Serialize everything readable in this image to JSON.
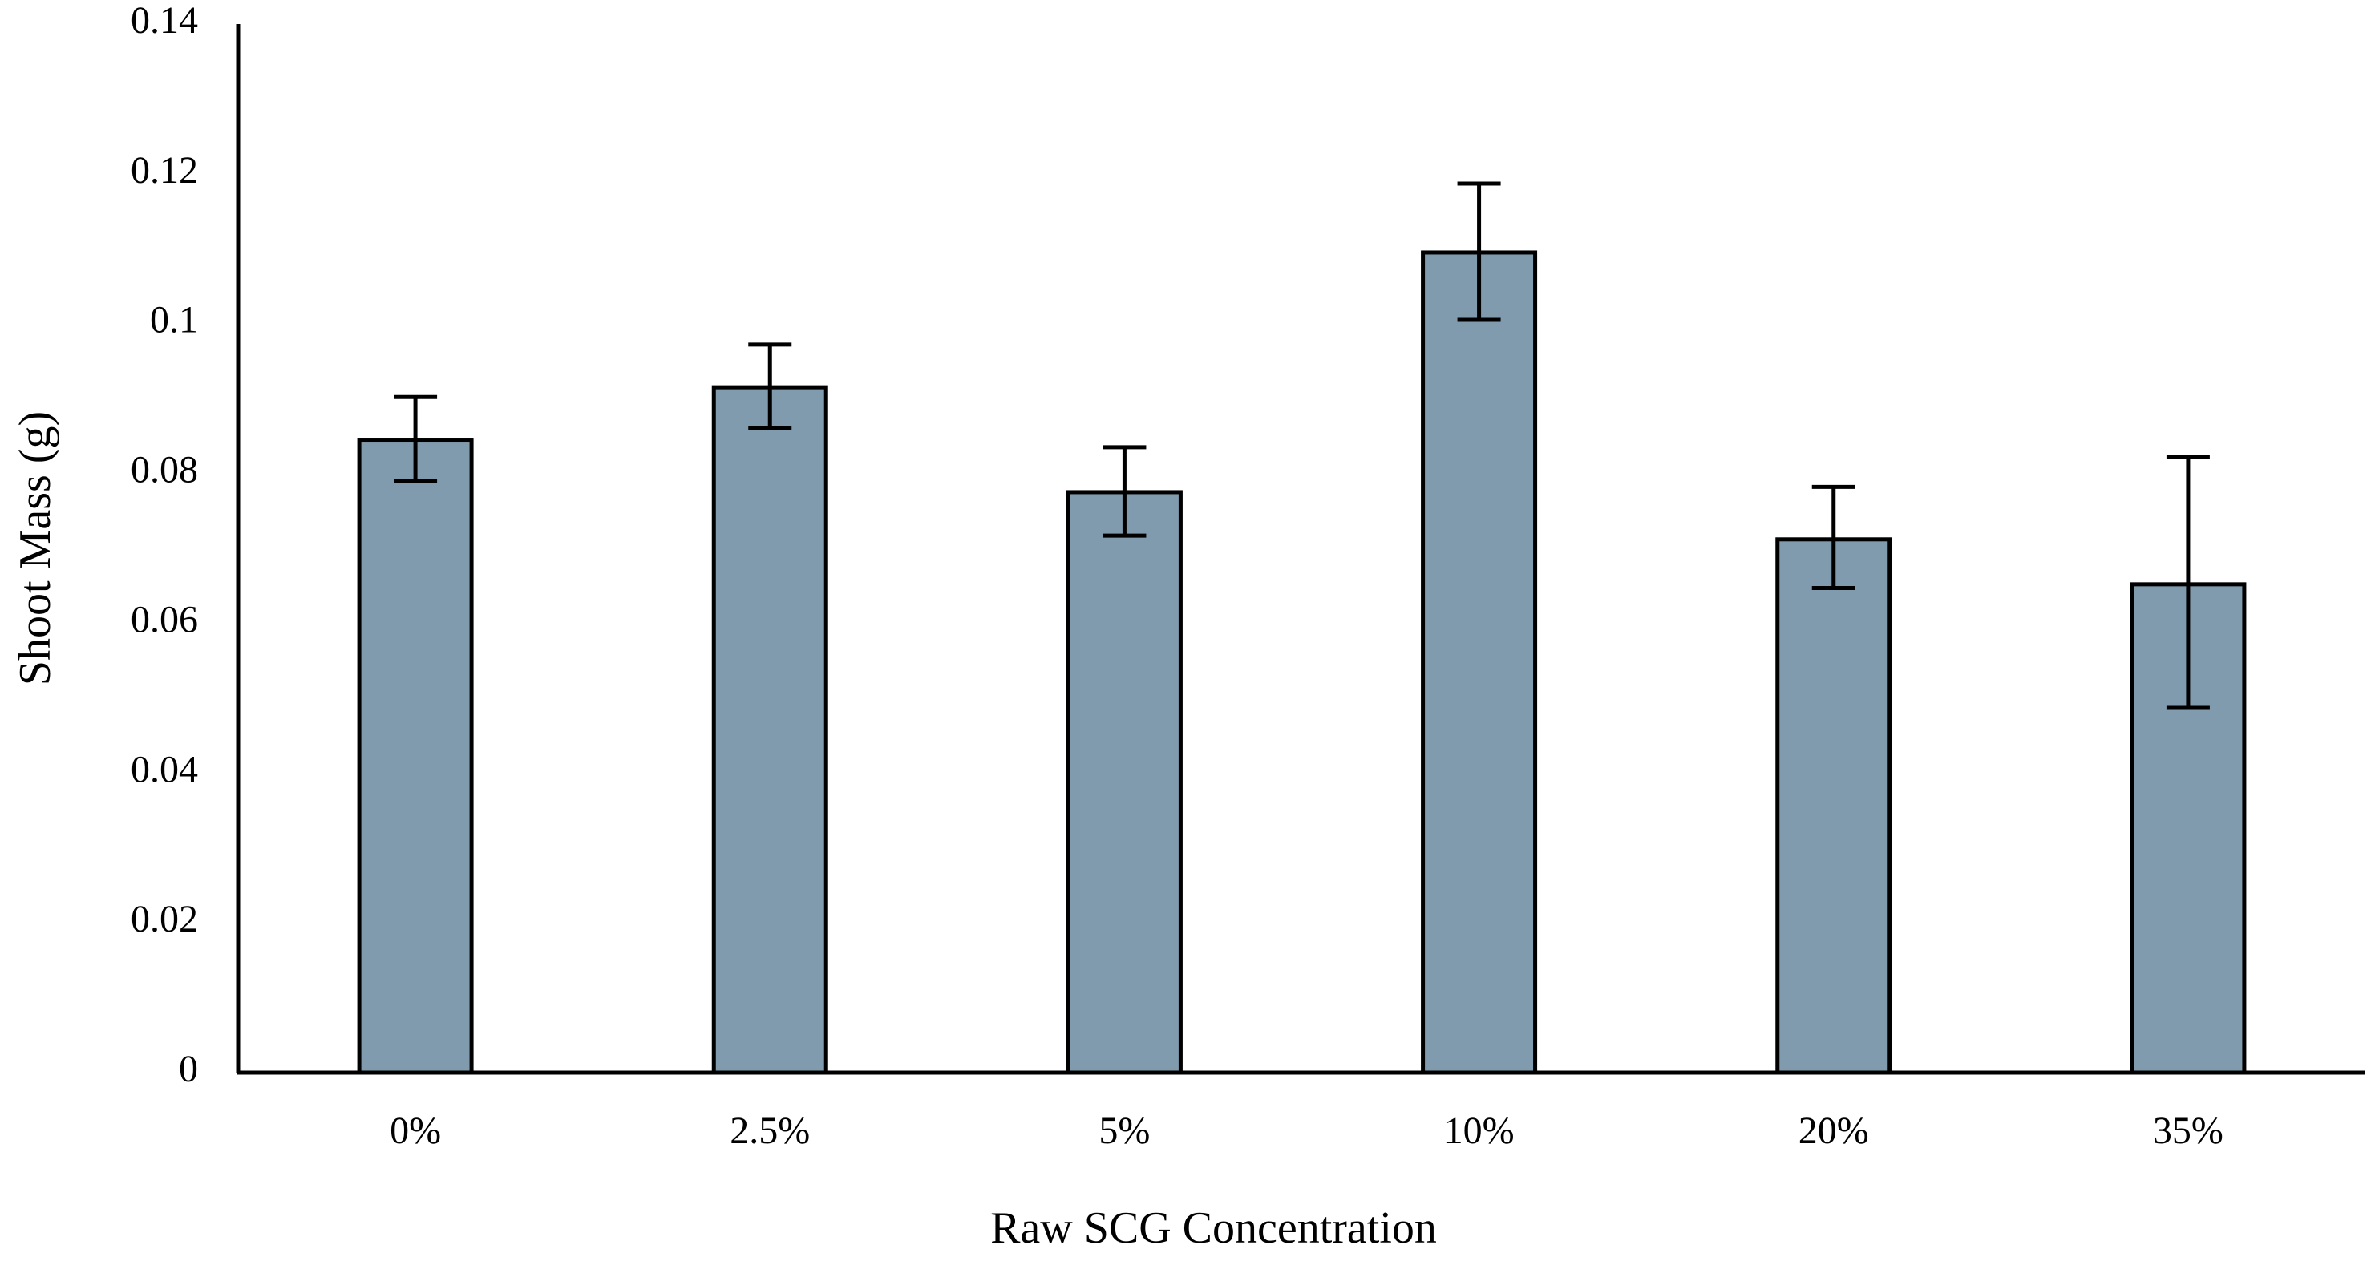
{
  "colors": {
    "bar_fill": "#7f9bad",
    "bar_edge": "#000000",
    "axis": "#000000",
    "background": "#ffffff"
  },
  "chart_data": {
    "type": "bar",
    "title": "",
    "xlabel": "Raw SCG Concentration",
    "ylabel": "Shoot Mass (g)",
    "categories": [
      "0%",
      "2.5%",
      "5%",
      "10%",
      "20%",
      "35%"
    ],
    "values": [
      0.0845,
      0.0915,
      0.0775,
      0.1095,
      0.0712,
      0.0652
    ],
    "error_low": [
      0.0055,
      0.0055,
      0.0058,
      0.009,
      0.0065,
      0.0165
    ],
    "error_high": [
      0.0057,
      0.0057,
      0.006,
      0.0092,
      0.007,
      0.017
    ],
    "ylim": [
      0,
      0.14
    ],
    "yticks": [
      0,
      0.02,
      0.04,
      0.06,
      0.08,
      0.1,
      0.12,
      0.14
    ],
    "ytick_labels": [
      "0",
      "0.02",
      "0.04",
      "0.06",
      "0.08",
      "0.1",
      "0.12",
      "0.14"
    ],
    "grid": false,
    "legend": "none"
  }
}
